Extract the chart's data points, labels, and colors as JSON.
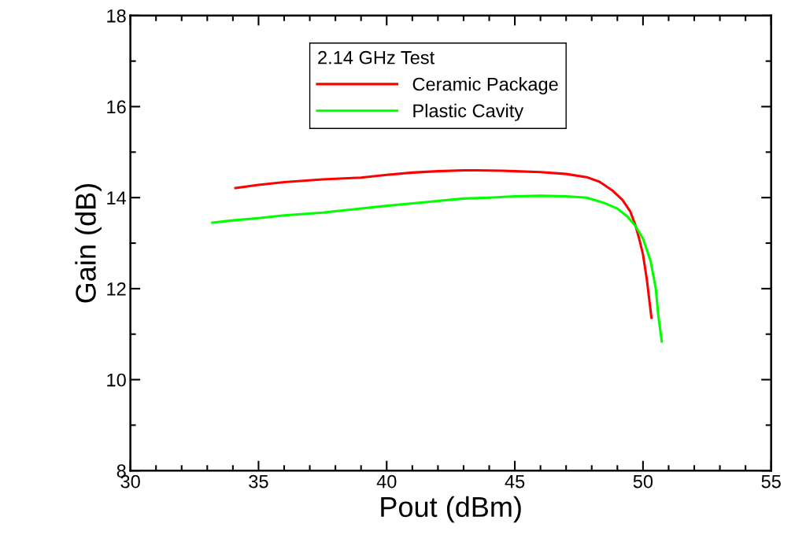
{
  "chart_data": {
    "type": "line",
    "xlabel": "Pout (dBm)",
    "ylabel": "Gain (dB)",
    "legend_title": "2.14 GHz Test",
    "xlim": [
      30,
      55
    ],
    "xticks": [
      30,
      35,
      40,
      45,
      50,
      55
    ],
    "ylim": [
      8,
      18
    ],
    "yticks": [
      8,
      10,
      12,
      14,
      16,
      18
    ],
    "grid": false,
    "legend": "top",
    "marker": "none",
    "line_style": "solid",
    "series": [
      {
        "name": "Ceramic Package",
        "color": "#ff0000",
        "x": [
          34.1,
          35,
          36,
          37.5,
          39,
          40,
          41,
          42,
          43,
          43.5,
          44.5,
          45,
          46,
          47,
          47.8,
          48.3,
          48.8,
          49.2,
          49.5,
          49.7,
          49.85,
          50.0,
          50.15,
          50.33
        ],
        "values": [
          14.21,
          14.28,
          14.34,
          14.4,
          14.44,
          14.5,
          14.55,
          14.58,
          14.6,
          14.6,
          14.59,
          14.58,
          14.56,
          14.52,
          14.45,
          14.35,
          14.16,
          13.95,
          13.7,
          13.4,
          13.1,
          12.75,
          12.2,
          11.36
        ]
      },
      {
        "name": "Plastic Cavity",
        "color": "#00ff00",
        "x": [
          33.2,
          34,
          35,
          36,
          37.5,
          39,
          40,
          41.5,
          43,
          44,
          45,
          46,
          47,
          47.8,
          48.5,
          49,
          49.4,
          49.7,
          50.0,
          50.3,
          50.5,
          50.6,
          50.73
        ],
        "values": [
          13.45,
          13.5,
          13.55,
          13.61,
          13.67,
          13.76,
          13.82,
          13.9,
          13.98,
          14.0,
          14.03,
          14.04,
          14.03,
          14.0,
          13.88,
          13.76,
          13.58,
          13.38,
          13.1,
          12.6,
          12.0,
          11.4,
          10.84
        ]
      }
    ]
  }
}
